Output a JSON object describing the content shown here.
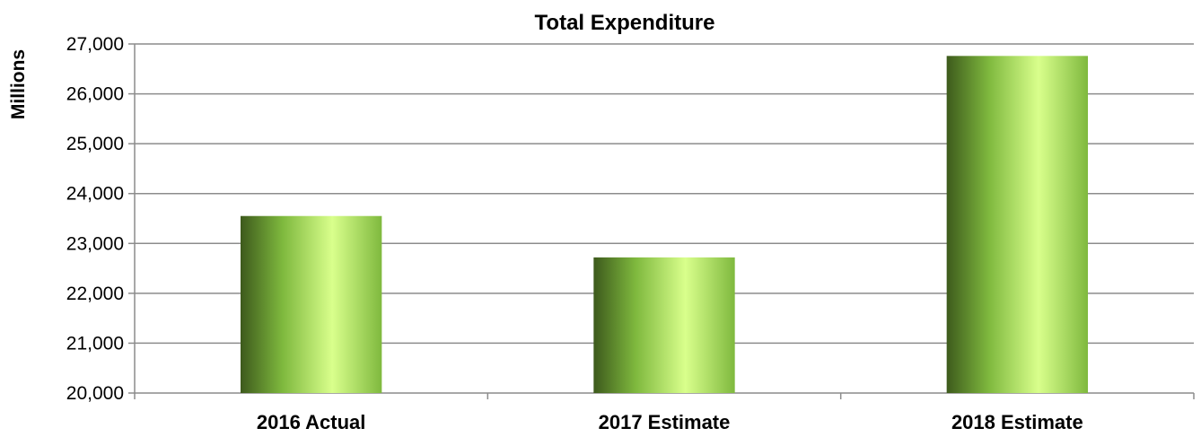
{
  "chart_data": {
    "type": "bar",
    "title": "Total Expenditure",
    "xlabel": "",
    "ylabel": "Millions",
    "categories": [
      "2016 Actual",
      "2017 Estimate",
      "2018 Estimate"
    ],
    "values": [
      23550,
      22720,
      26760
    ],
    "ylim": [
      20000,
      27000
    ],
    "yticks": [
      20000,
      21000,
      22000,
      23000,
      24000,
      25000,
      26000,
      27000
    ],
    "ytick_labels": [
      "20,000",
      "21,000",
      "22,000",
      "23,000",
      "24,000",
      "25,000",
      "26,000",
      "27,000"
    ],
    "grid": true,
    "legend": "none"
  },
  "colors": {
    "bar_dark": "#3d5a1c",
    "bar_mid": "#7fb93e",
    "bar_light": "#d9ff8c",
    "grid": "#8c8c8c",
    "axis": "#8c8c8c"
  }
}
